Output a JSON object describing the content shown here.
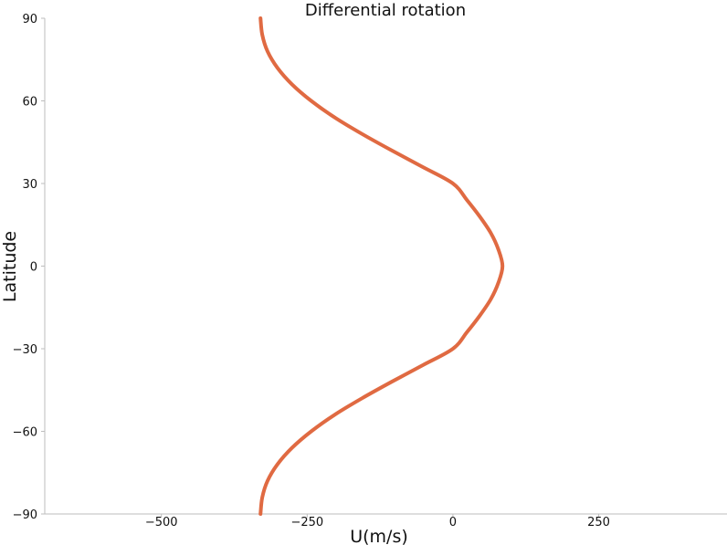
{
  "chart_data": {
    "type": "line",
    "title": "Differential rotation",
    "xlabel": "U(m/s)",
    "ylabel": "Latitude",
    "xlim": [
      -700,
      470
    ],
    "ylim": [
      -90,
      90
    ],
    "xticks": [
      -500,
      -250,
      0,
      250
    ],
    "xtick_labels": [
      "−500",
      "−250",
      "0",
      "250"
    ],
    "yticks": [
      -90,
      -60,
      -30,
      0,
      30,
      60,
      90
    ],
    "ytick_labels": [
      "−90",
      "−60",
      "−30",
      "0",
      "30",
      "60",
      "90"
    ],
    "grid": false,
    "series": [
      {
        "color": "#e06a42",
        "x": [
          -330,
          -327,
          -318,
          -301,
          -276,
          -243,
          -203,
          -156,
          -105,
          -52,
          0,
          24,
          46,
          65,
          78,
          85,
          78,
          65,
          46,
          24,
          0,
          -52,
          -105,
          -156,
          -203,
          -243,
          -276,
          -301,
          -318,
          -327,
          -330
        ],
        "y": [
          90,
          84,
          78,
          72,
          66,
          60,
          54,
          48,
          42,
          36,
          30,
          24,
          18,
          12,
          6,
          0,
          -6,
          -12,
          -18,
          -24,
          -30,
          -36,
          -42,
          -48,
          -54,
          -60,
          -66,
          -72,
          -78,
          -84,
          -90
        ]
      }
    ]
  }
}
